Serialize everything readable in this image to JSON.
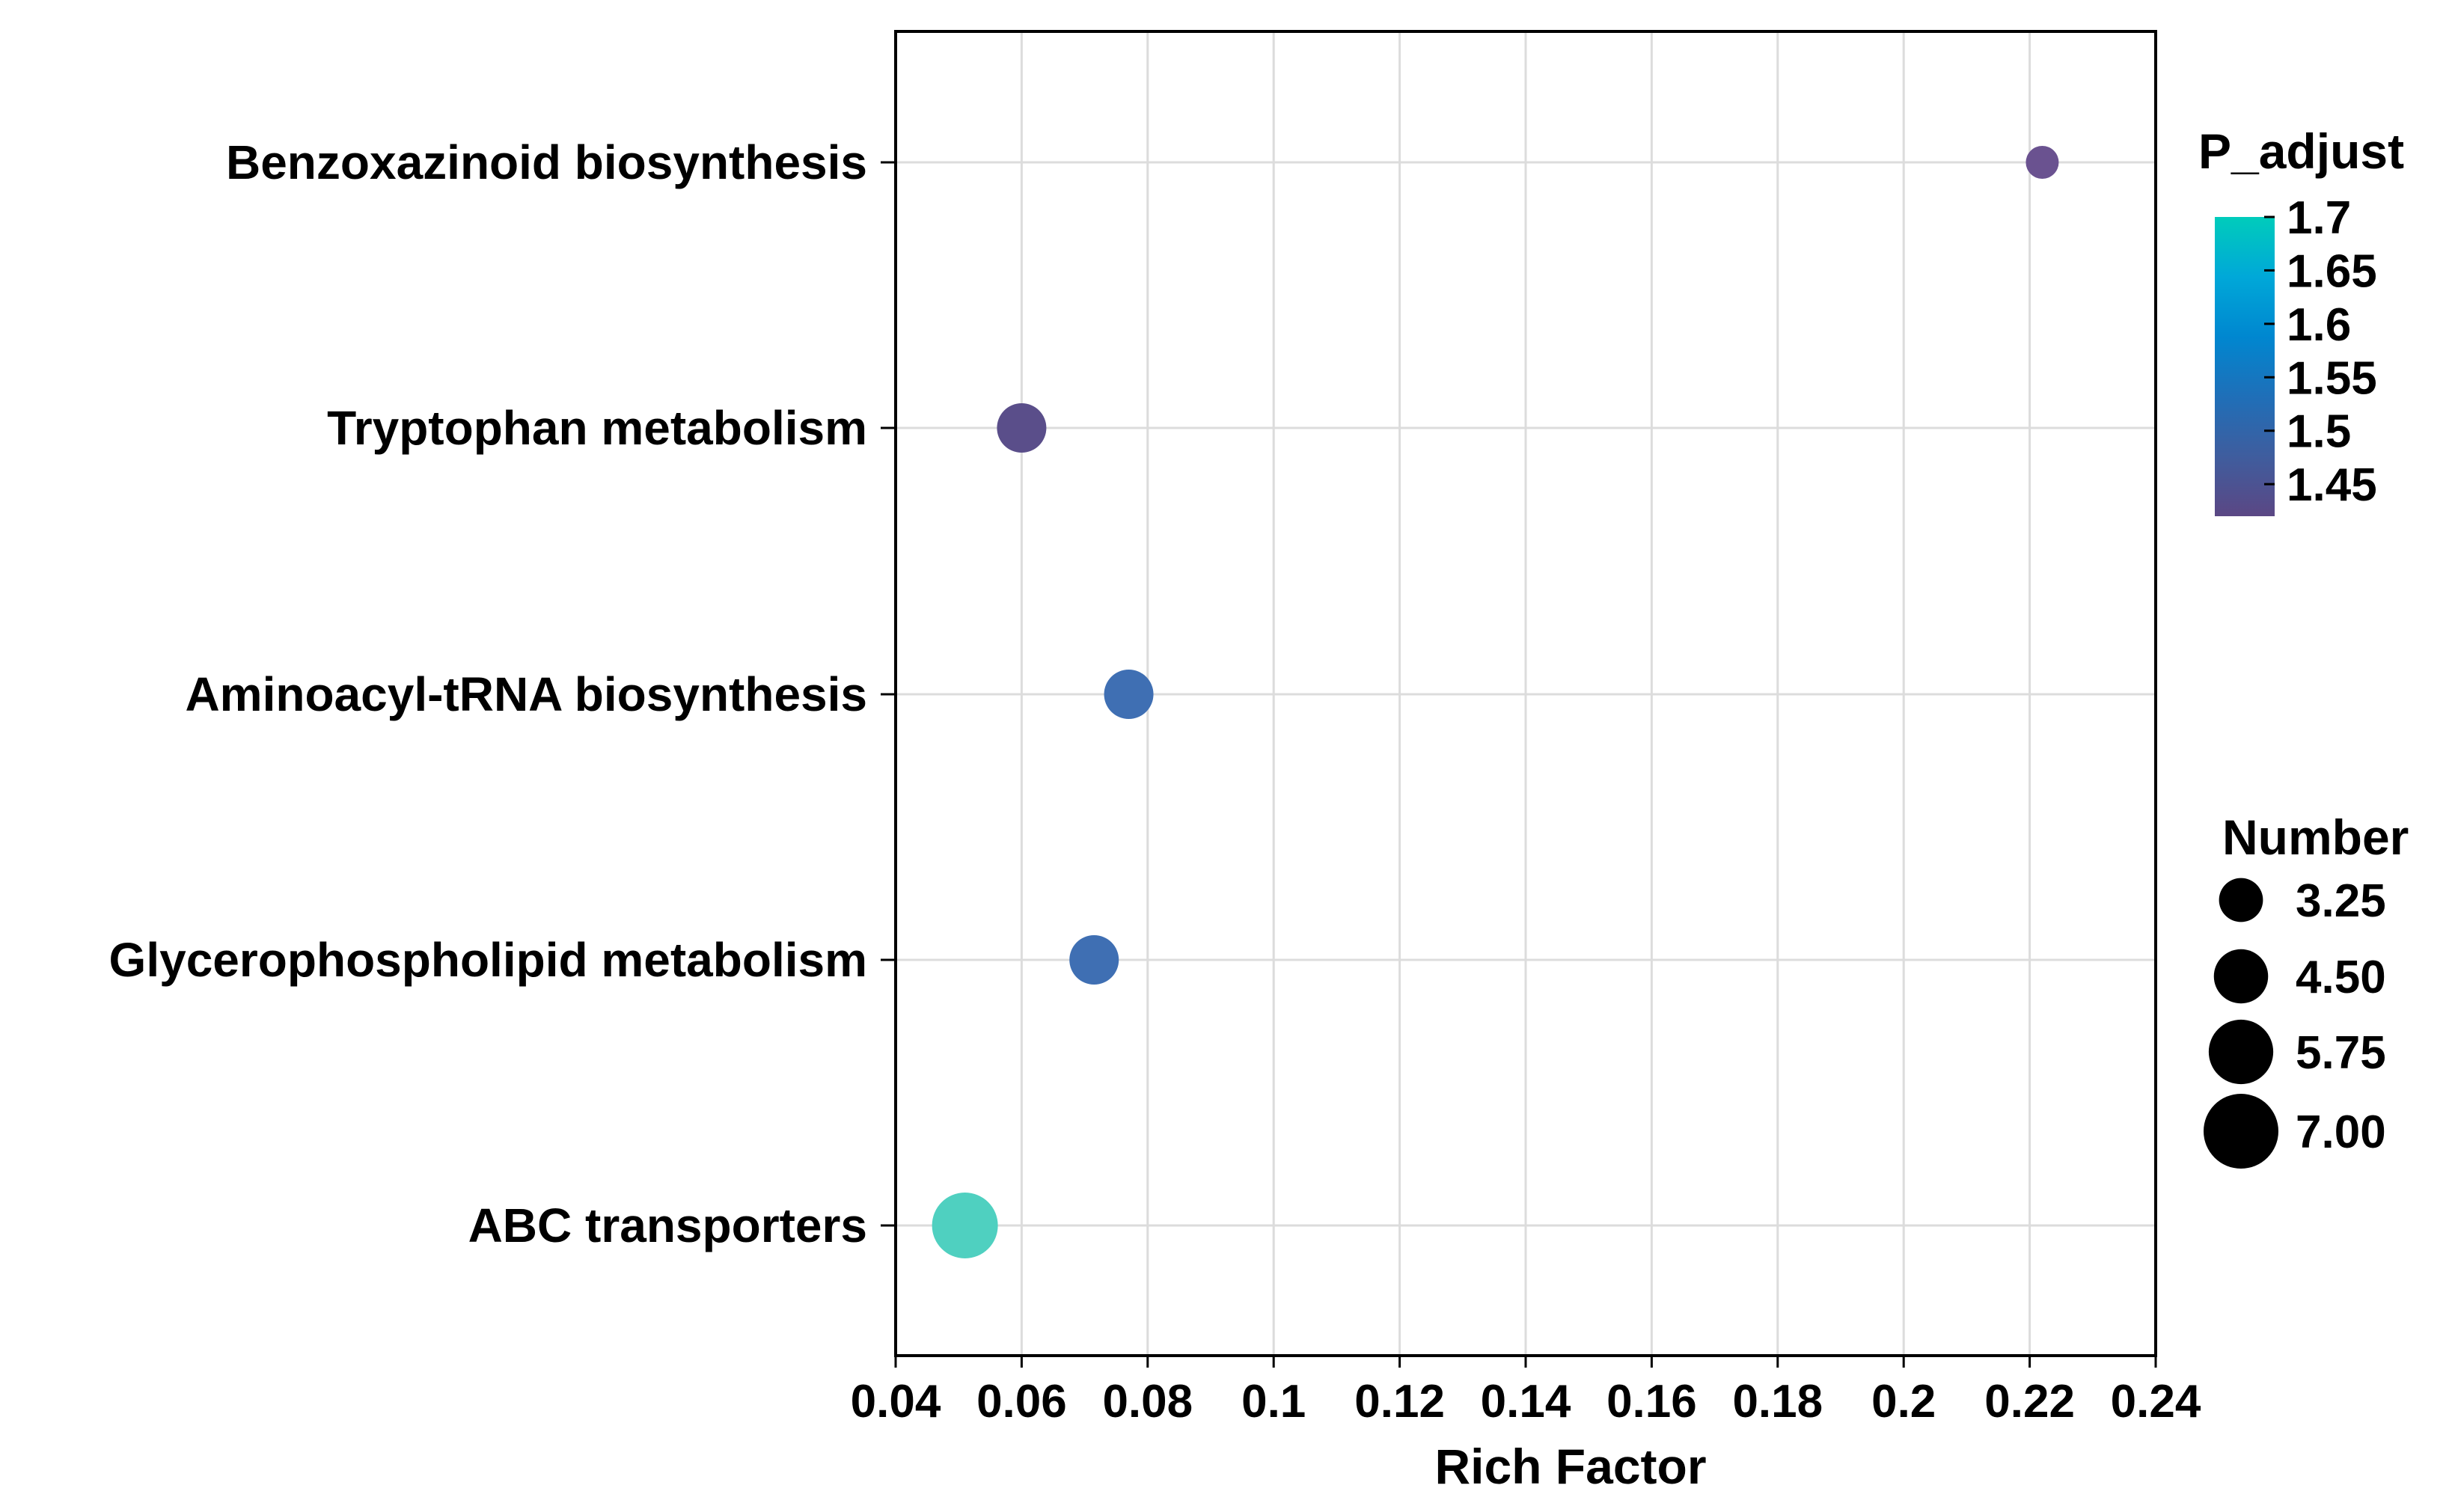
{
  "chart_data": {
    "type": "scatter",
    "title": "",
    "xlabel": "Rich Factor",
    "ylabel": "",
    "xlim": [
      0.04,
      0.24
    ],
    "x_ticks": [
      {
        "value": 0.04,
        "label": "0.04"
      },
      {
        "value": 0.06,
        "label": "0.06"
      },
      {
        "value": 0.08,
        "label": "0.08"
      },
      {
        "value": 0.1,
        "label": "0.1"
      },
      {
        "value": 0.12,
        "label": "0.12"
      },
      {
        "value": 0.14,
        "label": "0.14"
      },
      {
        "value": 0.16,
        "label": "0.16"
      },
      {
        "value": 0.18,
        "label": "0.18"
      },
      {
        "value": 0.2,
        "label": "0.2"
      },
      {
        "value": 0.22,
        "label": "0.22"
      },
      {
        "value": 0.24,
        "label": "0.24"
      }
    ],
    "grid": true,
    "categories": [
      "Benzoxazinoid biosynthesis",
      "Tryptophan metabolism",
      "Aminoacyl-tRNA biosynthesis",
      "Glycerophospholipid metabolism",
      "ABC transporters"
    ],
    "points": [
      {
        "pathway": "Benzoxazinoid biosynthesis",
        "rich_factor": 0.222,
        "p_adjust": 1.43,
        "number": 3,
        "color": "#6a5290"
      },
      {
        "pathway": "Tryptophan metabolism",
        "rich_factor": 0.06,
        "p_adjust": 1.44,
        "number": 5,
        "color": "#5a4e8a"
      },
      {
        "pathway": "Aminoacyl-tRNA biosynthesis",
        "rich_factor": 0.077,
        "p_adjust": 1.51,
        "number": 5,
        "color": "#3f6fb3"
      },
      {
        "pathway": "Glycerophospholipid metabolism",
        "rich_factor": 0.0715,
        "p_adjust": 1.51,
        "number": 5,
        "color": "#3f6fb3"
      },
      {
        "pathway": "ABC transporters",
        "rich_factor": 0.051,
        "p_adjust": 1.7,
        "number": 7,
        "color": "#4fd0c0"
      }
    ],
    "color_legend": {
      "title": "P_adjust",
      "ticks": [
        "1.7",
        "1.65",
        "1.6",
        "1.55",
        "1.5",
        "1.45"
      ],
      "tick_values": [
        1.7,
        1.65,
        1.6,
        1.55,
        1.5,
        1.45
      ],
      "range": [
        1.42,
        1.7
      ],
      "gradient": [
        "#00ccbb",
        "#00a8d8",
        "#0087d0",
        "#1f6fb8",
        "#3f5d9e",
        "#5b4784"
      ]
    },
    "size_legend": {
      "title": "Number",
      "values": [
        3.25,
        4.5,
        5.75,
        7.0
      ],
      "labels": [
        "3.25",
        "4.50",
        "5.75",
        "7.00"
      ]
    }
  }
}
